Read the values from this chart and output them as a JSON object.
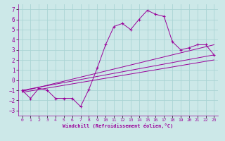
{
  "title": "",
  "xlabel": "Windchill (Refroidissement éolien,°C)",
  "ylabel": "",
  "xlim": [
    -0.5,
    23.5
  ],
  "ylim": [
    -3.5,
    7.5
  ],
  "yticks": [
    -3,
    -2,
    -1,
    0,
    1,
    2,
    3,
    4,
    5,
    6,
    7
  ],
  "xticks": [
    0,
    1,
    2,
    3,
    4,
    5,
    6,
    7,
    8,
    9,
    10,
    11,
    12,
    13,
    14,
    15,
    16,
    17,
    18,
    19,
    20,
    21,
    22,
    23
  ],
  "line_color": "#990099",
  "bg_color": "#cce8e8",
  "grid_color": "#aad4d4",
  "main_series_x": [
    0,
    1,
    2,
    3,
    4,
    5,
    6,
    7,
    8,
    9,
    10,
    11,
    12,
    13,
    14,
    15,
    16,
    17,
    18,
    19,
    20,
    21,
    22,
    23
  ],
  "main_series_y": [
    -1.0,
    -1.8,
    -0.8,
    -1.0,
    -1.8,
    -1.8,
    -1.8,
    -2.6,
    -0.9,
    1.2,
    3.5,
    5.3,
    5.6,
    5.0,
    6.0,
    6.9,
    6.5,
    6.3,
    3.8,
    3.0,
    3.2,
    3.5,
    3.5,
    2.5
  ],
  "line2_x": [
    0,
    23
  ],
  "line2_y": [
    -1.0,
    2.5
  ],
  "line3_x": [
    0,
    23
  ],
  "line3_y": [
    -1.1,
    3.5
  ],
  "line4_x": [
    0,
    23
  ],
  "line4_y": [
    -1.2,
    2.0
  ]
}
